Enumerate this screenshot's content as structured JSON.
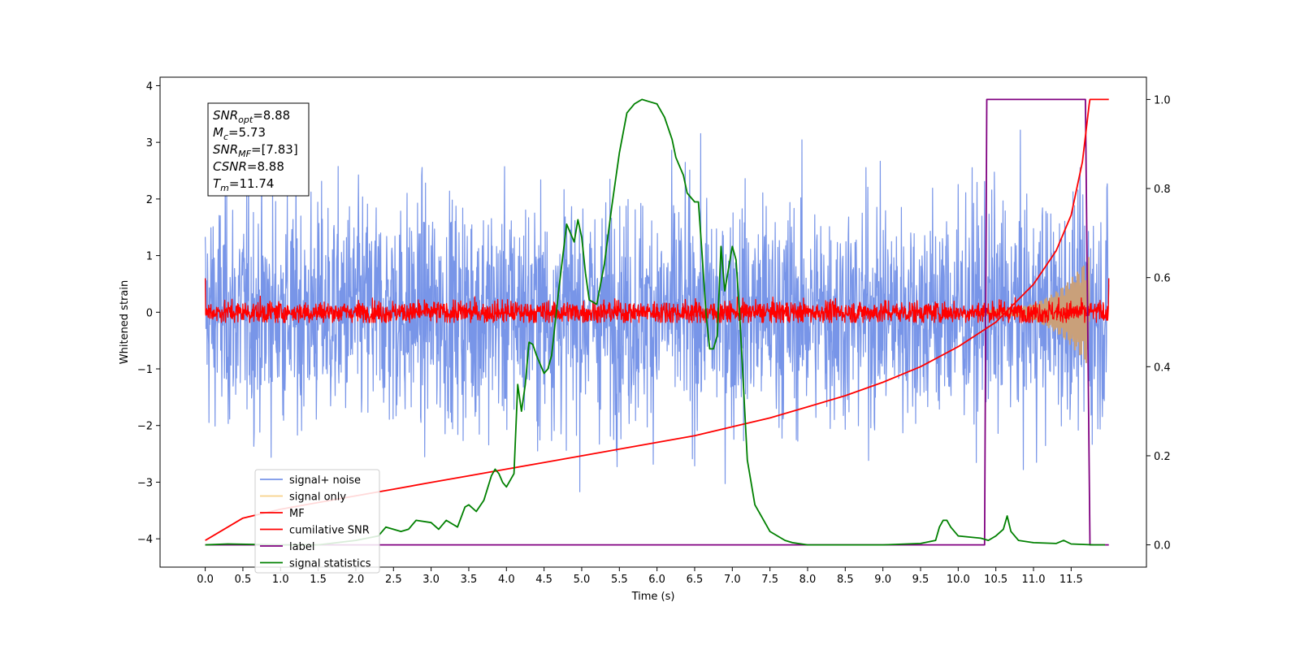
{
  "chart_data": {
    "type": "line",
    "title": "",
    "xlabel": "Time (s)",
    "ylabel": "Whitened strain",
    "ylabel_right": "",
    "xlim": [
      -0.6,
      12.5
    ],
    "ylim": [
      -4.5,
      4.15
    ],
    "ylim_right": [
      -0.05,
      1.05
    ],
    "x_ticks": [
      "0.0",
      "0.5",
      "1.0",
      "1.5",
      "2.0",
      "2.5",
      "3.0",
      "3.5",
      "4.0",
      "4.5",
      "5.0",
      "5.5",
      "6.0",
      "6.5",
      "7.0",
      "7.5",
      "8.0",
      "8.5",
      "9.0",
      "9.5",
      "10.0",
      "10.5",
      "11.0",
      "11.5"
    ],
    "y_ticks_left": [
      "4",
      "3",
      "2",
      "1",
      "0",
      "−1",
      "−2",
      "−3",
      "−4"
    ],
    "y_ticks_right": [
      "1.0",
      "0.8",
      "0.6",
      "0.4",
      "0.2",
      "0.0"
    ],
    "grid": false,
    "legend_position": "lower-left",
    "annotation": {
      "lines": [
        {
          "main": "SNR",
          "sub": "opt",
          "rest": "=8.88"
        },
        {
          "main": "M",
          "sub": "c",
          "rest": "=5.73"
        },
        {
          "main": "SNR",
          "sub": "MF",
          "rest": "=[7.83]"
        },
        {
          "main": "CSNR",
          "sub": "",
          "rest": "=8.88"
        },
        {
          "main": "T",
          "sub": "m",
          "rest": "=11.74"
        }
      ]
    },
    "series": [
      {
        "name": "signal+ noise",
        "color": "#7895e8",
        "axis": "left",
        "style": "noise",
        "x_range": [
          0,
          12.0
        ],
        "center": 0.0,
        "amplitude": 1.0
      },
      {
        "name": "signal only",
        "color": "#f7d28a",
        "axis": "left",
        "style": "chirp",
        "x_range": [
          0,
          11.74
        ],
        "center": 0.0,
        "peak_amplitude": 0.95
      },
      {
        "name": "MF",
        "color": "#ff0000",
        "axis": "left",
        "style": "noise",
        "x_range": [
          0,
          12.0
        ],
        "center": 0.0,
        "amplitude": 0.1
      },
      {
        "name": "cumilative SNR",
        "color": "#ff0000",
        "axis": "right",
        "x": [
          0,
          0.5,
          1.0,
          1.5,
          2.0,
          2.5,
          3.0,
          3.5,
          4.0,
          4.5,
          5.0,
          5.5,
          6.0,
          6.5,
          7.0,
          7.5,
          8.0,
          8.5,
          9.0,
          9.5,
          10.0,
          10.5,
          11.0,
          11.3,
          11.5,
          11.65,
          11.74,
          11.75,
          12.0
        ],
        "y": [
          0.01,
          0.06,
          0.08,
          0.095,
          0.11,
          0.125,
          0.14,
          0.155,
          0.17,
          0.185,
          0.2,
          0.215,
          0.23,
          0.245,
          0.265,
          0.285,
          0.31,
          0.335,
          0.365,
          0.4,
          0.445,
          0.5,
          0.585,
          0.66,
          0.74,
          0.86,
          0.99,
          1.0,
          1.0
        ]
      },
      {
        "name": "label",
        "color": "#800080",
        "axis": "right",
        "x": [
          0,
          10.35,
          10.38,
          11.69,
          11.75,
          12.0
        ],
        "y": [
          0.0,
          0.0,
          1.0,
          1.0,
          0.0,
          0.0
        ]
      },
      {
        "name": "signal statistics",
        "color": "#008000",
        "axis": "right",
        "x": [
          0,
          0.3,
          1.0,
          1.5,
          2.0,
          2.3,
          2.4,
          2.6,
          2.7,
          2.8,
          3.0,
          3.1,
          3.2,
          3.3,
          3.35,
          3.45,
          3.5,
          3.6,
          3.7,
          3.8,
          3.85,
          3.9,
          3.95,
          4.0,
          4.1,
          4.15,
          4.2,
          4.25,
          4.3,
          4.35,
          4.4,
          4.5,
          4.55,
          4.6,
          4.7,
          4.8,
          4.9,
          4.95,
          5.0,
          5.05,
          5.1,
          5.2,
          5.3,
          5.4,
          5.5,
          5.6,
          5.7,
          5.8,
          5.9,
          6.0,
          6.1,
          6.2,
          6.25,
          6.3,
          6.35,
          6.4,
          6.45,
          6.5,
          6.55,
          6.6,
          6.65,
          6.7,
          6.75,
          6.8,
          6.85,
          6.9,
          7.0,
          7.05,
          7.1,
          7.15,
          7.2,
          7.3,
          7.4,
          7.5,
          7.6,
          7.7,
          7.8,
          8.0,
          9.0,
          9.5,
          9.7,
          9.75,
          9.8,
          9.85,
          9.9,
          10.0,
          10.3,
          10.4,
          10.5,
          10.6,
          10.65,
          10.7,
          10.8,
          11.0,
          11.3,
          11.4,
          11.5,
          11.8,
          11.95
        ],
        "y": [
          0.0,
          0.002,
          0.0,
          0.0,
          0.01,
          0.02,
          0.04,
          0.03,
          0.035,
          0.055,
          0.05,
          0.035,
          0.055,
          0.045,
          0.04,
          0.085,
          0.09,
          0.075,
          0.1,
          0.155,
          0.17,
          0.16,
          0.14,
          0.13,
          0.16,
          0.36,
          0.3,
          0.36,
          0.455,
          0.45,
          0.425,
          0.385,
          0.395,
          0.425,
          0.58,
          0.72,
          0.68,
          0.73,
          0.69,
          0.61,
          0.55,
          0.54,
          0.63,
          0.76,
          0.88,
          0.97,
          0.99,
          1.0,
          0.995,
          0.99,
          0.96,
          0.91,
          0.87,
          0.85,
          0.83,
          0.79,
          0.78,
          0.77,
          0.77,
          0.65,
          0.52,
          0.44,
          0.44,
          0.47,
          0.67,
          0.57,
          0.67,
          0.64,
          0.51,
          0.35,
          0.19,
          0.09,
          0.06,
          0.03,
          0.02,
          0.01,
          0.005,
          0.0,
          0.0,
          0.003,
          0.01,
          0.04,
          0.055,
          0.055,
          0.04,
          0.02,
          0.015,
          0.01,
          0.02,
          0.035,
          0.065,
          0.03,
          0.01,
          0.005,
          0.003,
          0.01,
          0.002,
          0.0,
          0.0
        ]
      }
    ]
  }
}
